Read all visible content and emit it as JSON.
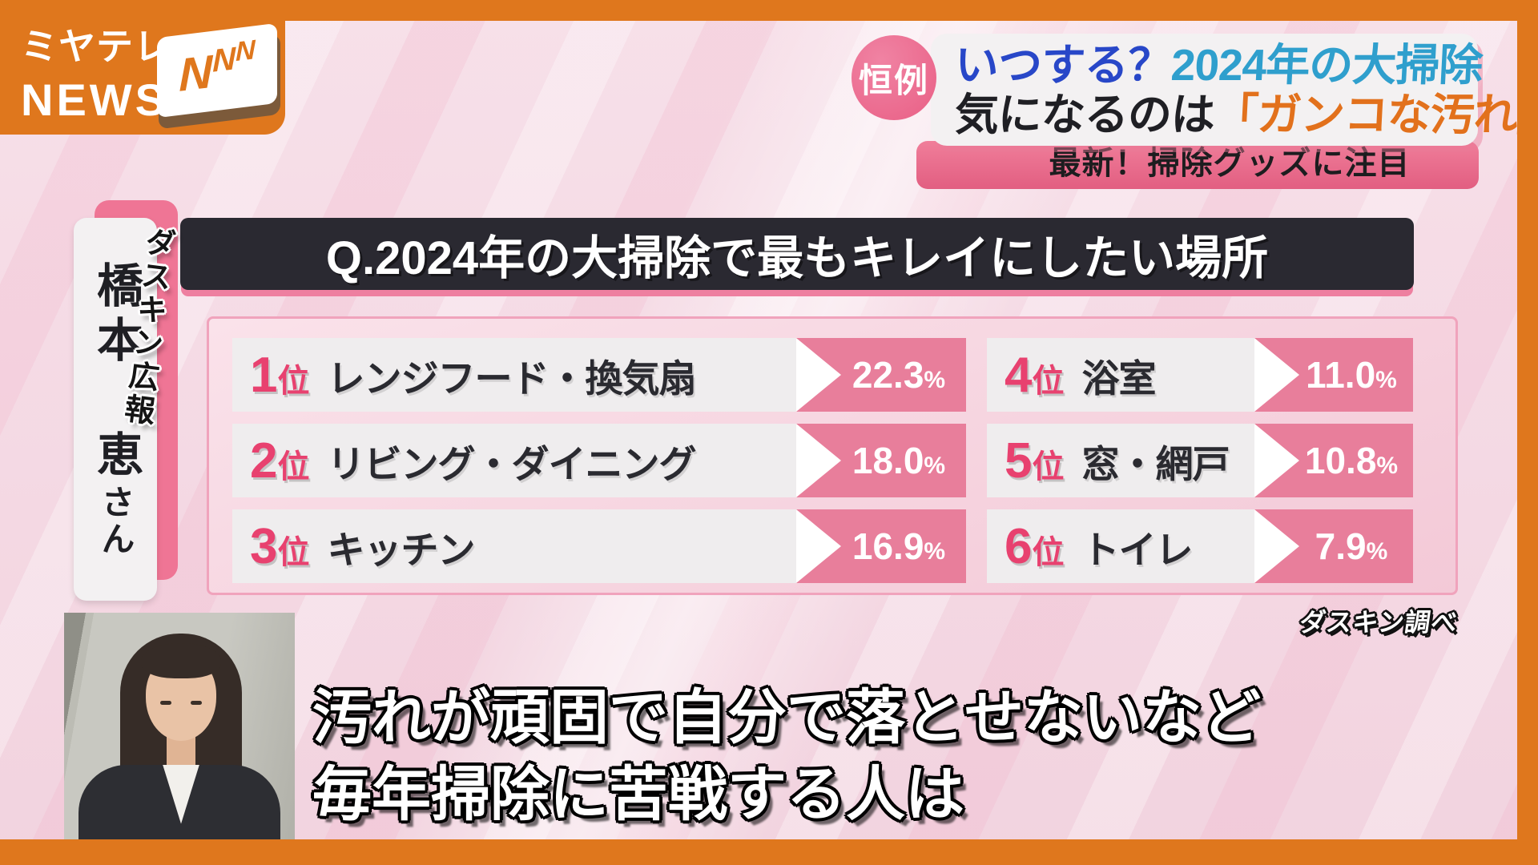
{
  "branding": {
    "station_line1": "ミヤテレ",
    "station_line2": "NEWS",
    "network_letters": [
      "N",
      "N",
      "N"
    ],
    "brand_orange": "#df771d"
  },
  "headline": {
    "badge": "恒例",
    "when_question": "いつする？",
    "topic": "2024年の大掃除",
    "concern_prefix": "気になるのは",
    "concern_highlight": "「ガンコな汚れ」",
    "subtitle": "最新！掃除グッズに注目",
    "colors": {
      "when": "#2847c8",
      "topic": "#2f9fcd",
      "highlight": "#e2711c",
      "badge_bg": "#e95f85"
    }
  },
  "speaker": {
    "role": "ダスキン広報",
    "name": "橋本 恵",
    "honorific": "さん"
  },
  "survey": {
    "question": "Q.2024年の大掃除で最もキレイにしたい場所",
    "source": "ダスキン調べ",
    "accent_pink": "#e8416f",
    "chevron_pink": "#e87e9b",
    "items": [
      {
        "rank": "1",
        "suffix": "位",
        "label": "レンジフード・換気扇",
        "value": "22.3",
        "unit": "%"
      },
      {
        "rank": "2",
        "suffix": "位",
        "label": "リビング・ダイニング",
        "value": "18.0",
        "unit": "%"
      },
      {
        "rank": "3",
        "suffix": "位",
        "label": "キッチン",
        "value": "16.9",
        "unit": "%"
      },
      {
        "rank": "4",
        "suffix": "位",
        "label": "浴室",
        "value": "11.0",
        "unit": "%"
      },
      {
        "rank": "5",
        "suffix": "位",
        "label": "窓・網戸",
        "value": "10.8",
        "unit": "%"
      },
      {
        "rank": "6",
        "suffix": "位",
        "label": "トイレ",
        "value": "7.9",
        "unit": "%"
      }
    ]
  },
  "caption": {
    "line1": "汚れが頑固で自分で落とせないなど",
    "line2": "毎年掃除に苦戦する人は"
  },
  "chart_data": {
    "type": "bar",
    "title": "Q.2024年の大掃除で最もキレイにしたい場所",
    "categories": [
      "レンジフード・換気扇",
      "リビング・ダイニング",
      "キッチン",
      "浴室",
      "窓・網戸",
      "トイレ"
    ],
    "values": [
      22.3,
      18.0,
      16.9,
      11.0,
      10.8,
      7.9
    ],
    "unit": "%",
    "source": "ダスキン調べ",
    "layout": "two-column ranked list: ranks 1-3 in left column, ranks 4-6 in right column, value in pink chevron at row end"
  }
}
